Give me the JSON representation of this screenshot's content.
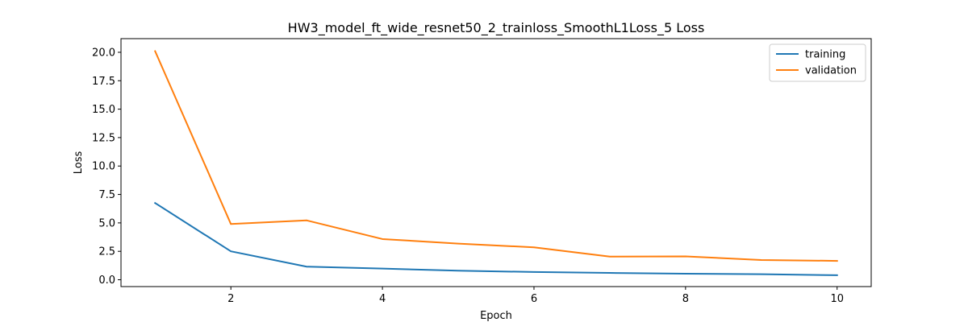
{
  "chart_data": {
    "type": "line",
    "title": "HW3_model_ft_wide_resnet50_2_trainloss_SmoothL1Loss_5 Loss",
    "xlabel": "Epoch",
    "ylabel": "Loss",
    "xlim": [
      0.55,
      10.45
    ],
    "ylim": [
      -0.6,
      21.2
    ],
    "xticks": [
      2,
      4,
      6,
      8,
      10
    ],
    "yticks": [
      0.0,
      2.5,
      5.0,
      7.5,
      10.0,
      12.5,
      15.0,
      17.5,
      20.0
    ],
    "xtick_labels": [
      "2",
      "4",
      "6",
      "8",
      "10"
    ],
    "ytick_labels": [
      "0.0",
      "2.5",
      "5.0",
      "7.5",
      "10.0",
      "12.5",
      "15.0",
      "17.5",
      "20.0"
    ],
    "grid": false,
    "legend_position": "top-right",
    "x": [
      1,
      2,
      3,
      4,
      5,
      6,
      7,
      8,
      9,
      10
    ],
    "series": [
      {
        "name": "training",
        "color": "#1f77b4",
        "values": [
          6.75,
          2.5,
          1.15,
          0.98,
          0.8,
          0.68,
          0.6,
          0.53,
          0.49,
          0.4
        ]
      },
      {
        "name": "validation",
        "color": "#ff7f0e",
        "values": [
          20.1,
          4.9,
          5.22,
          3.58,
          3.18,
          2.85,
          2.04,
          2.05,
          1.74,
          1.66
        ]
      }
    ]
  }
}
